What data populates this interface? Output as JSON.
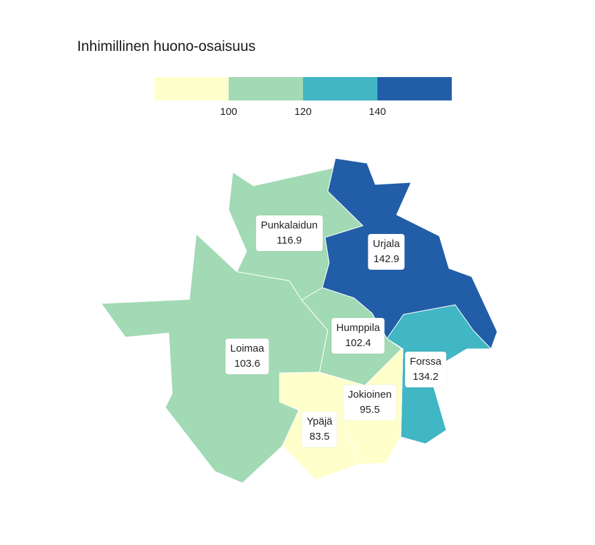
{
  "title": "Inhimillinen huono-osaisuus",
  "legend": {
    "colors": [
      "#ffffcc",
      "#a1dab4",
      "#41b6c4",
      "#225ea8"
    ],
    "ticks": [
      "100",
      "120",
      "140"
    ]
  },
  "regions": [
    {
      "key": "punkalaidun",
      "name": "Punkalaidun",
      "value": "116.9",
      "color": "#a1dab4"
    },
    {
      "key": "urjala",
      "name": "Urjala",
      "value": "142.9",
      "color": "#225ea8"
    },
    {
      "key": "loimaa",
      "name": "Loimaa",
      "value": "103.6",
      "color": "#a1dab4"
    },
    {
      "key": "humppila",
      "name": "Humppila",
      "value": "102.4",
      "color": "#a1dab4"
    },
    {
      "key": "forssa",
      "name": "Forssa",
      "value": "134.2",
      "color": "#41b6c4"
    },
    {
      "key": "jokioinen",
      "name": "Jokioinen",
      "value": "95.5",
      "color": "#ffffcc"
    },
    {
      "key": "ypaja",
      "name": "Ypäjä",
      "value": "83.5",
      "color": "#ffffcc"
    }
  ]
}
